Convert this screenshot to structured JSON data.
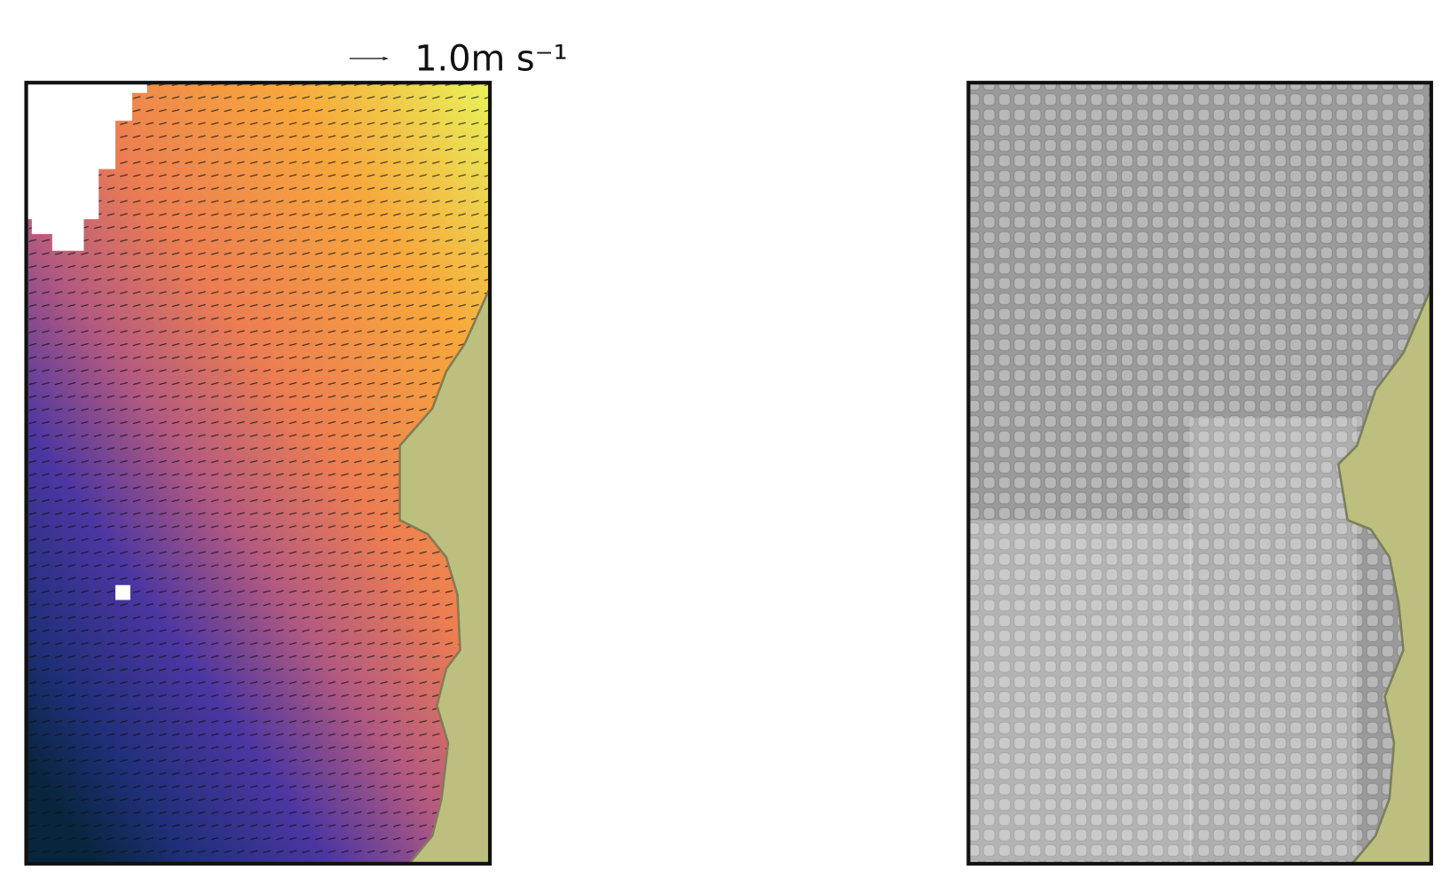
{
  "quiver_key": {
    "label": "1.0m s⁻¹"
  }
}
